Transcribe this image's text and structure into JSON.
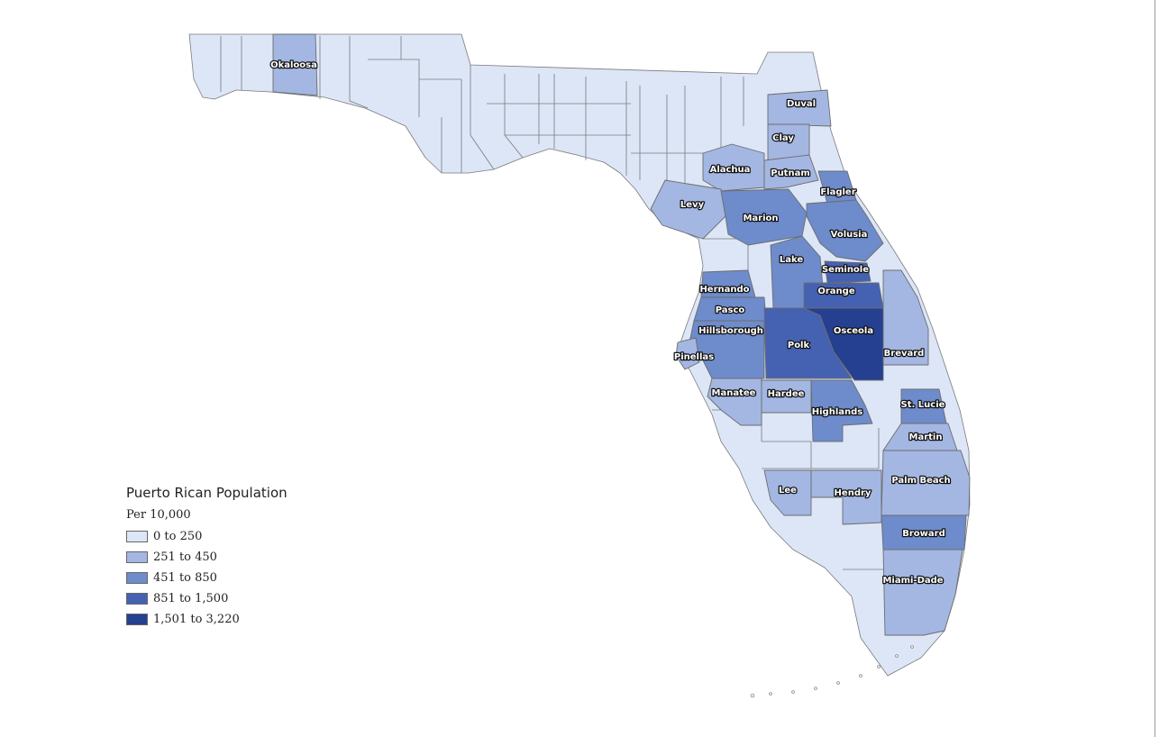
{
  "legend": {
    "title": "Puerto Rican Population",
    "subtitle": "Per 10,000",
    "classes": [
      {
        "label": "0 to 250",
        "color": "#dce6f7"
      },
      {
        "label": "251 to 450",
        "color": "#a3b7e2"
      },
      {
        "label": "451 to 850",
        "color": "#6e8bcb"
      },
      {
        "label": "851 to 1,500",
        "color": "#4561b2"
      },
      {
        "label": "1,501 to 3,220",
        "color": "#253f91"
      }
    ]
  },
  "counties": {
    "okaloosa": {
      "name": "Okaloosa",
      "class": 1
    },
    "duval": {
      "name": "Duval",
      "class": 1
    },
    "clay": {
      "name": "Clay",
      "class": 1
    },
    "alachua": {
      "name": "Alachua",
      "class": 1
    },
    "putnam": {
      "name": "Putnam",
      "class": 1
    },
    "flagler": {
      "name": "Flagler",
      "class": 2
    },
    "levy": {
      "name": "Levy",
      "class": 1
    },
    "marion": {
      "name": "Marion",
      "class": 2
    },
    "volusia": {
      "name": "Volusia",
      "class": 2
    },
    "lake": {
      "name": "Lake",
      "class": 2
    },
    "seminole": {
      "name": "Seminole",
      "class": 3
    },
    "orange": {
      "name": "Orange",
      "class": 3
    },
    "hernando": {
      "name": "Hernando",
      "class": 2
    },
    "pasco": {
      "name": "Pasco",
      "class": 2
    },
    "hillsborough": {
      "name": "Hillsborough",
      "class": 2
    },
    "osceola": {
      "name": "Osceola",
      "class": 4
    },
    "polk": {
      "name": "Polk",
      "class": 3
    },
    "pinellas": {
      "name": "Pinellas",
      "class": 1
    },
    "brevard": {
      "name": "Brevard",
      "class": 1
    },
    "manatee": {
      "name": "Manatee",
      "class": 1
    },
    "hardee": {
      "name": "Hardee",
      "class": 1
    },
    "st_lucie": {
      "name": "St. Lucie",
      "class": 2
    },
    "highlands": {
      "name": "Highlands",
      "class": 2
    },
    "martin": {
      "name": "Martin",
      "class": 1
    },
    "palm_beach": {
      "name": "Palm Beach",
      "class": 1
    },
    "lee": {
      "name": "Lee",
      "class": 1
    },
    "hendry": {
      "name": "Hendry",
      "class": 1
    },
    "broward": {
      "name": "Broward",
      "class": 2
    },
    "miami_dade": {
      "name": "Miami-Dade",
      "class": 1
    }
  }
}
